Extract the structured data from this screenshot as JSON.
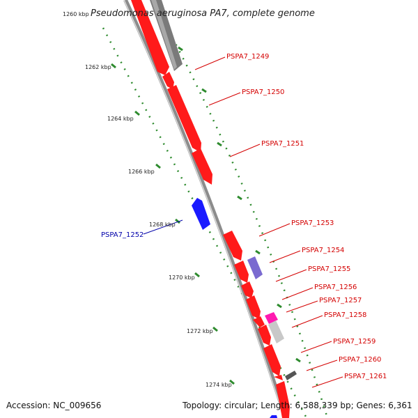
{
  "title": "Pseudomonas aeruginosa PA7, complete genome",
  "footer": {
    "accession": "Accession: NC_009656",
    "summary": "Topology: circular; Length: 6,588,339 bp; Genes: 6,361"
  },
  "colors": {
    "backbone": "#8c8c8c",
    "forward_gene": "#ff1a1a",
    "reverse_gene": "#1a1aff",
    "forward_label": "#d40000",
    "reverse_label": "#0000aa",
    "ticks": "#2e8b2e",
    "gray_feature": "#7a7a7a",
    "light_gray_feature": "#c8c8c8",
    "purple_feature": "#7a6ad0",
    "magenta_feature": "#ff1ab0"
  },
  "scale_ticks": [
    "1260 kbp",
    "1262 kbp",
    "1264 kbp",
    "1266 kbp",
    "1268 kbp",
    "1270 kbp",
    "1272 kbp",
    "1274 kbp"
  ],
  "forward_genes": [
    "PSPA7_1249",
    "PSPA7_1250",
    "PSPA7_1251",
    "PSPA7_1253",
    "PSPA7_1254",
    "PSPA7_1255",
    "PSPA7_1256",
    "PSPA7_1257",
    "PSPA7_1258",
    "PSPA7_1259",
    "PSPA7_1260",
    "PSPA7_1261"
  ],
  "reverse_genes": [
    "PSPA7_1252"
  ]
}
